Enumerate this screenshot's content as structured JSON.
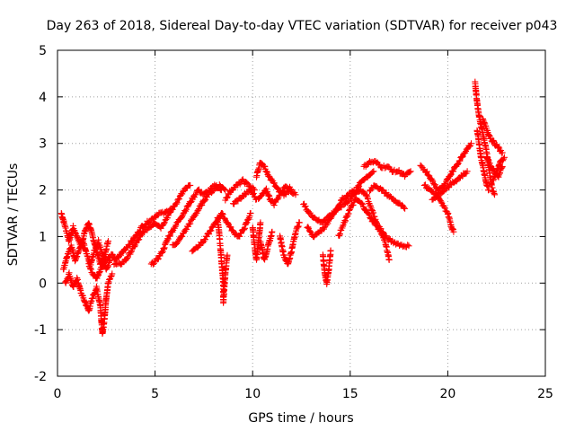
{
  "chart_data": {
    "type": "scatter",
    "title": "Day 263 of 2018, Sidereal Day-to-day VTEC variation (SDTVAR) for receiver p043",
    "xlabel": "GPS time / hours",
    "ylabel": "SDTVAR / TECUs",
    "xlim": [
      0,
      25
    ],
    "ylim": [
      -2,
      5
    ],
    "xticks": [
      0,
      5,
      10,
      15,
      20,
      25
    ],
    "yticks": [
      -2,
      -1,
      0,
      1,
      2,
      3,
      4,
      5
    ],
    "grid": true,
    "marker": "+",
    "series": [
      {
        "name": "SDTVAR",
        "color": "#ff0000",
        "tracks": [
          [
            [
              0.2,
              1.5
            ],
            [
              0.4,
              1.2
            ],
            [
              0.6,
              0.9
            ],
            [
              0.8,
              1.2
            ],
            [
              1.0,
              1.0
            ],
            [
              1.2,
              0.8
            ],
            [
              1.4,
              1.1
            ],
            [
              1.6,
              1.3
            ],
            [
              1.8,
              1.0
            ],
            [
              2.0,
              0.7
            ],
            [
              2.2,
              0.4
            ],
            [
              2.4,
              0.6
            ],
            [
              2.6,
              0.9
            ]
          ],
          [
            [
              0.3,
              0.3
            ],
            [
              0.5,
              0.6
            ],
            [
              0.7,
              0.8
            ],
            [
              0.9,
              0.5
            ],
            [
              1.1,
              0.7
            ],
            [
              1.3,
              0.9
            ],
            [
              1.5,
              0.6
            ],
            [
              1.7,
              0.4
            ],
            [
              1.9,
              0.7
            ],
            [
              2.1,
              0.9
            ],
            [
              2.3,
              0.6
            ],
            [
              2.5,
              0.3
            ],
            [
              2.7,
              0.5
            ]
          ],
          [
            [
              0.4,
              0.0
            ],
            [
              0.6,
              0.2
            ],
            [
              0.8,
              -0.1
            ],
            [
              1.0,
              0.1
            ],
            [
              1.2,
              -0.2
            ],
            [
              1.4,
              -0.4
            ],
            [
              1.6,
              -0.6
            ],
            [
              1.8,
              -0.3
            ],
            [
              2.0,
              -0.1
            ],
            [
              2.2,
              -0.5
            ],
            [
              2.3,
              -1.1
            ],
            [
              2.4,
              -0.8
            ],
            [
              2.5,
              -0.3
            ],
            [
              2.6,
              0.0
            ],
            [
              2.8,
              0.2
            ]
          ],
          [
            [
              1.6,
              0.4
            ],
            [
              1.8,
              0.2
            ],
            [
              2.0,
              0.1
            ],
            [
              2.2,
              0.3
            ],
            [
              2.5,
              0.5
            ],
            [
              2.8,
              0.6
            ],
            [
              3.0,
              0.5
            ],
            [
              3.2,
              0.6
            ],
            [
              3.4,
              0.7
            ],
            [
              3.6,
              0.8
            ],
            [
              3.8,
              0.9
            ],
            [
              4.0,
              1.0
            ],
            [
              4.3,
              1.2
            ],
            [
              4.6,
              1.3
            ],
            [
              4.9,
              1.4
            ],
            [
              5.2,
              1.5
            ],
            [
              5.5,
              1.5
            ],
            [
              5.8,
              1.6
            ]
          ],
          [
            [
              2.9,
              0.4
            ],
            [
              3.2,
              0.4
            ],
            [
              3.5,
              0.5
            ],
            [
              3.8,
              0.7
            ],
            [
              4.1,
              0.9
            ],
            [
              4.4,
              1.1
            ],
            [
              4.7,
              1.2
            ],
            [
              5.0,
              1.3
            ],
            [
              5.3,
              1.2
            ],
            [
              5.6,
              1.4
            ],
            [
              5.9,
              1.6
            ],
            [
              6.2,
              1.8
            ],
            [
              6.5,
              2.0
            ],
            [
              6.8,
              2.1
            ]
          ],
          [
            [
              4.8,
              0.4
            ],
            [
              5.1,
              0.5
            ],
            [
              5.4,
              0.7
            ],
            [
              5.7,
              1.0
            ],
            [
              6.0,
              1.2
            ],
            [
              6.3,
              1.4
            ],
            [
              6.6,
              1.6
            ],
            [
              6.9,
              1.8
            ],
            [
              7.2,
              2.0
            ],
            [
              7.5,
              1.9
            ],
            [
              7.8,
              2.0
            ],
            [
              8.1,
              2.1
            ],
            [
              8.4,
              2.0
            ]
          ],
          [
            [
              5.9,
              0.8
            ],
            [
              6.2,
              0.9
            ],
            [
              6.5,
              1.1
            ],
            [
              6.8,
              1.3
            ],
            [
              7.1,
              1.5
            ],
            [
              7.4,
              1.7
            ],
            [
              7.7,
              1.9
            ],
            [
              8.0,
              2.0
            ],
            [
              8.3,
              2.1
            ],
            [
              8.6,
              2.0
            ]
          ],
          [
            [
              6.9,
              0.7
            ],
            [
              7.2,
              0.8
            ],
            [
              7.5,
              0.9
            ],
            [
              7.8,
              1.1
            ],
            [
              8.1,
              1.3
            ],
            [
              8.4,
              1.5
            ],
            [
              8.7,
              1.3
            ],
            [
              9.0,
              1.1
            ],
            [
              9.3,
              1.0
            ],
            [
              9.6,
              1.2
            ],
            [
              9.9,
              1.5
            ]
          ],
          [
            [
              8.2,
              1.4
            ],
            [
              8.3,
              1.0
            ],
            [
              8.4,
              0.5
            ],
            [
              8.5,
              0.0
            ],
            [
              8.5,
              -0.4
            ],
            [
              8.6,
              0.2
            ],
            [
              8.7,
              0.6
            ]
          ],
          [
            [
              8.6,
              1.8
            ],
            [
              8.9,
              2.0
            ],
            [
              9.2,
              2.1
            ],
            [
              9.5,
              2.2
            ],
            [
              9.8,
              2.1
            ],
            [
              10.1,
              2.0
            ]
          ],
          [
            [
              9.0,
              1.7
            ],
            [
              9.3,
              1.8
            ],
            [
              9.6,
              1.9
            ],
            [
              9.9,
              2.0
            ],
            [
              10.2,
              1.8
            ]
          ],
          [
            [
              10.0,
              1.2
            ],
            [
              10.1,
              0.8
            ],
            [
              10.2,
              0.5
            ],
            [
              10.3,
              0.9
            ],
            [
              10.4,
              1.3
            ]
          ],
          [
            [
              10.2,
              2.3
            ],
            [
              10.4,
              2.6
            ],
            [
              10.6,
              2.5
            ],
            [
              10.8,
              2.3
            ],
            [
              11.0,
              2.2
            ],
            [
              11.3,
              2.0
            ],
            [
              11.6,
              1.9
            ],
            [
              11.9,
              2.0
            ],
            [
              12.2,
              1.9
            ]
          ],
          [
            [
              10.3,
              1.8
            ],
            [
              10.5,
              1.9
            ],
            [
              10.7,
              2.0
            ],
            [
              10.9,
              1.8
            ],
            [
              11.1,
              1.7
            ],
            [
              11.4,
              1.9
            ],
            [
              11.7,
              2.1
            ],
            [
              12.0,
              2.0
            ]
          ],
          [
            [
              10.4,
              0.9
            ],
            [
              10.6,
              0.5
            ],
            [
              10.8,
              0.8
            ],
            [
              11.0,
              1.1
            ]
          ],
          [
            [
              11.4,
              1.0
            ],
            [
              11.6,
              0.6
            ],
            [
              11.8,
              0.4
            ],
            [
              12.0,
              0.7
            ],
            [
              12.2,
              1.1
            ],
            [
              12.4,
              1.3
            ]
          ],
          [
            [
              12.6,
              1.7
            ],
            [
              12.9,
              1.5
            ],
            [
              13.2,
              1.4
            ],
            [
              13.5,
              1.3
            ],
            [
              13.8,
              1.4
            ],
            [
              14.1,
              1.5
            ],
            [
              14.4,
              1.6
            ],
            [
              14.7,
              1.7
            ],
            [
              15.0,
              1.8
            ],
            [
              15.3,
              2.0
            ],
            [
              15.6,
              2.2
            ],
            [
              15.9,
              2.3
            ],
            [
              16.2,
              2.4
            ]
          ],
          [
            [
              12.8,
              1.2
            ],
            [
              13.1,
              1.0
            ],
            [
              13.4,
              1.1
            ],
            [
              13.7,
              1.2
            ],
            [
              14.0,
              1.4
            ],
            [
              14.3,
              1.6
            ],
            [
              14.6,
              1.8
            ],
            [
              14.9,
              1.9
            ],
            [
              15.2,
              2.0
            ]
          ],
          [
            [
              13.6,
              0.6
            ],
            [
              13.7,
              0.2
            ],
            [
              13.8,
              0.0
            ],
            [
              13.9,
              0.3
            ],
            [
              14.0,
              0.7
            ]
          ],
          [
            [
              14.4,
              1.0
            ],
            [
              14.7,
              1.3
            ],
            [
              15.0,
              1.6
            ],
            [
              15.3,
              1.8
            ],
            [
              15.6,
              1.7
            ],
            [
              15.9,
              1.5
            ],
            [
              16.2,
              1.3
            ],
            [
              16.5,
              1.2
            ],
            [
              16.8,
              1.0
            ],
            [
              17.1,
              0.9
            ],
            [
              17.4,
              0.85
            ],
            [
              17.7,
              0.8
            ],
            [
              18.0,
              0.8
            ]
          ],
          [
            [
              15.7,
              2.5
            ],
            [
              16.0,
              2.6
            ],
            [
              16.3,
              2.6
            ],
            [
              16.6,
              2.5
            ],
            [
              16.9,
              2.5
            ],
            [
              17.2,
              2.4
            ],
            [
              17.5,
              2.4
            ],
            [
              17.8,
              2.3
            ],
            [
              18.1,
              2.4
            ]
          ],
          [
            [
              15.2,
              1.9
            ],
            [
              15.5,
              2.0
            ],
            [
              15.8,
              1.9
            ],
            [
              16.1,
              1.6
            ],
            [
              16.4,
              1.2
            ],
            [
              16.7,
              1.0
            ],
            [
              16.9,
              0.7
            ],
            [
              17.0,
              0.5
            ]
          ],
          [
            [
              16.0,
              2.0
            ],
            [
              16.3,
              2.1
            ],
            [
              16.6,
              2.0
            ],
            [
              16.9,
              1.9
            ],
            [
              17.2,
              1.8
            ],
            [
              17.5,
              1.7
            ],
            [
              17.8,
              1.6
            ]
          ],
          [
            [
              18.6,
              2.5
            ],
            [
              18.9,
              2.4
            ],
            [
              19.2,
              2.2
            ],
            [
              19.5,
              2.0
            ],
            [
              19.8,
              2.1
            ],
            [
              20.1,
              2.3
            ],
            [
              20.4,
              2.5
            ],
            [
              20.7,
              2.7
            ],
            [
              21.0,
              2.9
            ],
            [
              21.2,
              3.0
            ]
          ],
          [
            [
              18.8,
              2.1
            ],
            [
              19.1,
              2.0
            ],
            [
              19.4,
              1.9
            ],
            [
              19.7,
              1.7
            ],
            [
              20.0,
              1.5
            ],
            [
              20.2,
              1.2
            ],
            [
              20.3,
              1.1
            ]
          ],
          [
            [
              19.2,
              1.8
            ],
            [
              19.5,
              1.9
            ],
            [
              19.8,
              2.0
            ],
            [
              20.1,
              2.1
            ],
            [
              20.4,
              2.2
            ],
            [
              20.7,
              2.3
            ],
            [
              21.0,
              2.4
            ]
          ],
          [
            [
              21.4,
              4.3
            ],
            [
              21.5,
              3.9
            ],
            [
              21.6,
              3.6
            ],
            [
              21.7,
              3.4
            ],
            [
              21.8,
              3.2
            ],
            [
              21.9,
              3.0
            ],
            [
              22.0,
              2.8
            ],
            [
              22.1,
              2.5
            ],
            [
              22.2,
              2.2
            ],
            [
              22.3,
              2.0
            ],
            [
              22.4,
              1.9
            ]
          ],
          [
            [
              21.5,
              3.3
            ],
            [
              21.6,
              3.0
            ],
            [
              21.7,
              2.7
            ],
            [
              21.8,
              2.5
            ],
            [
              21.9,
              2.3
            ],
            [
              22.0,
              2.1
            ],
            [
              22.1,
              2.0
            ]
          ],
          [
            [
              21.8,
              3.5
            ],
            [
              22.0,
              3.3
            ],
            [
              22.2,
              3.1
            ],
            [
              22.4,
              3.0
            ],
            [
              22.6,
              2.9
            ],
            [
              22.8,
              2.8
            ]
          ],
          [
            [
              22.0,
              2.7
            ],
            [
              22.2,
              2.5
            ],
            [
              22.4,
              2.4
            ],
            [
              22.6,
              2.3
            ],
            [
              22.8,
              2.5
            ]
          ],
          [
            [
              22.3,
              2.2
            ],
            [
              22.5,
              2.4
            ],
            [
              22.7,
              2.6
            ],
            [
              22.9,
              2.7
            ]
          ]
        ]
      }
    ]
  }
}
